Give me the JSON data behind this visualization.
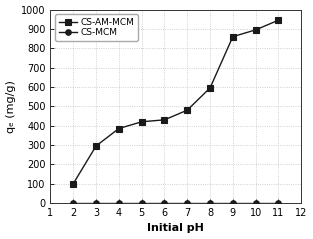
{
  "cs_am_mcm_x": [
    2,
    3,
    4,
    5,
    6,
    7,
    8,
    9,
    10,
    11
  ],
  "cs_am_mcm_y": [
    100,
    295,
    385,
    420,
    430,
    480,
    595,
    860,
    895,
    945
  ],
  "cs_mcm_x": [
    2,
    3,
    4,
    5,
    6,
    7,
    8,
    9,
    10,
    11
  ],
  "cs_mcm_y": [
    2,
    2,
    2,
    2,
    2,
    2,
    2,
    2,
    2,
    2
  ],
  "xlabel": "Initial pH",
  "ylabel": "qₑ (mg/g)",
  "xlim": [
    1,
    12
  ],
  "ylim": [
    0,
    1000
  ],
  "xticks": [
    1,
    2,
    3,
    4,
    5,
    6,
    7,
    8,
    9,
    10,
    11,
    12
  ],
  "yticks": [
    0,
    100,
    200,
    300,
    400,
    500,
    600,
    700,
    800,
    900,
    1000
  ],
  "legend_labels": [
    "CS-AM-MCM",
    "CS-MCM"
  ],
  "line_color": "#1a1a1a",
  "marker_square": "s",
  "marker_circle": "o",
  "marker_color": "#1a1a1a",
  "marker_size": 4,
  "background_color": "#ffffff",
  "dot_color": "#bbbbbb"
}
